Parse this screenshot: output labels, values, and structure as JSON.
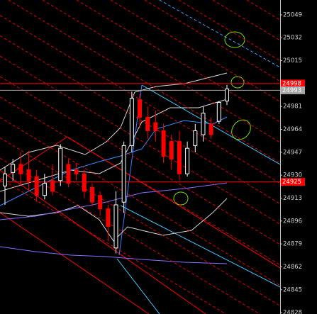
{
  "chart_data": {
    "type": "candlestick",
    "up_color": "#ffffff",
    "down_color": "#ff0000",
    "open": [
      24922,
      24932,
      24938,
      24934,
      24929,
      24915,
      24926,
      24926,
      24938,
      24934,
      24931,
      24921,
      24915,
      24905,
      24876,
      24910,
      24952,
      24986,
      24973,
      24969,
      24963,
      24955,
      24955,
      24931,
      24952,
      24960,
      24968,
      24970,
      24985
    ],
    "high": [
      24936,
      24942,
      24947,
      24948,
      24934,
      24931,
      24938,
      24953,
      24942,
      24939,
      24934,
      24924,
      24918,
      24908,
      24918,
      24955,
      24992,
      24990,
      24981,
      24978,
      24968,
      24960,
      24963,
      24955,
      24968,
      24981,
      24973,
      24985,
      24997
    ],
    "low": [
      24908,
      24926,
      24922,
      24918,
      24910,
      24912,
      24915,
      24922,
      24921,
      24926,
      24913,
      24907,
      24900,
      24881,
      24872,
      24902,
      24947,
      24965,
      24957,
      24955,
      24939,
      24934,
      24926,
      24929,
      24947,
      24955,
      24957,
      24968,
      24982
    ],
    "close": [
      24931,
      24938,
      24931,
      24926,
      24915,
      24924,
      24918,
      24950,
      24924,
      24931,
      24918,
      24910,
      24905,
      24892,
      24908,
      24952,
      24987,
      24973,
      24963,
      24963,
      24944,
      24942,
      24931,
      24950,
      24963,
      24976,
      24960,
      24984,
      24994
    ],
    "ylim": [
      24827,
      25060
    ],
    "yticks": [
      25049,
      25032,
      25015,
      24981,
      24964,
      24947,
      24930,
      24913,
      24896,
      24879,
      24862,
      24845,
      24828
    ],
    "levels": [
      {
        "value": 24998,
        "color": "#ff0000"
      },
      {
        "value": 24993,
        "color": "#a8a8a8"
      },
      {
        "value": 24925,
        "color": "#ff0000"
      }
    ]
  }
}
